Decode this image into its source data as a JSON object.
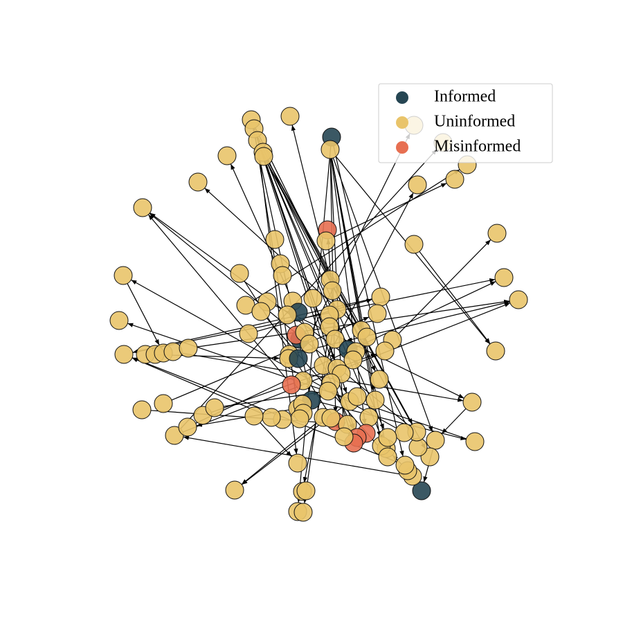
{
  "legend": {
    "items": [
      {
        "label": "Informed",
        "color": "#264653"
      },
      {
        "label": "Uninformed",
        "color": "#e9c46a"
      },
      {
        "label": "Misinformed",
        "color": "#e76f51"
      }
    ]
  }
}
